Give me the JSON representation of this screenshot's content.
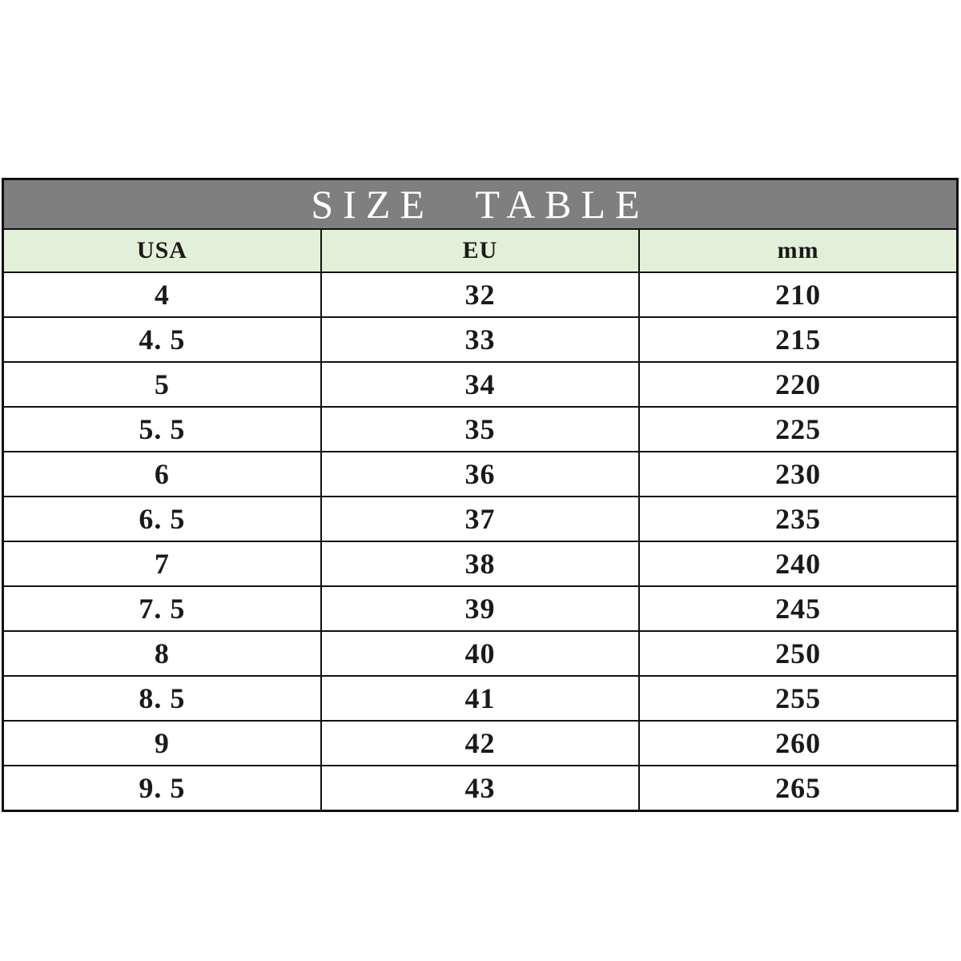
{
  "title": "SIZE TABLE",
  "table": {
    "columns": [
      "USA",
      "EU",
      "mm"
    ],
    "rows": [
      [
        "4",
        "32",
        "210"
      ],
      [
        "4. 5",
        "33",
        "215"
      ],
      [
        "5",
        "34",
        "220"
      ],
      [
        "5. 5",
        "35",
        "225"
      ],
      [
        "6",
        "36",
        "230"
      ],
      [
        "6. 5",
        "37",
        "235"
      ],
      [
        "7",
        "38",
        "240"
      ],
      [
        "7. 5",
        "39",
        "245"
      ],
      [
        "8",
        "40",
        "250"
      ],
      [
        "8. 5",
        "41",
        "255"
      ],
      [
        "9",
        "42",
        "260"
      ],
      [
        "9. 5",
        "43",
        "265"
      ]
    ]
  },
  "colors": {
    "title_bar_bg": "#7f7f7f",
    "title_text": "#ffffff",
    "header_row_bg": "#e2f0d9",
    "row_bg": "#ffffff",
    "grid_line": "#111111",
    "cell_text": "#1a1a1a",
    "page_bg": "#ffffff"
  },
  "chart_data": {
    "type": "table",
    "title": "SIZE TABLE",
    "columns": [
      "USA",
      "EU",
      "mm"
    ],
    "rows": [
      [
        4,
        32,
        210
      ],
      [
        4.5,
        33,
        215
      ],
      [
        5,
        34,
        220
      ],
      [
        5.5,
        35,
        225
      ],
      [
        6,
        36,
        230
      ],
      [
        6.5,
        37,
        235
      ],
      [
        7,
        38,
        240
      ],
      [
        7.5,
        39,
        245
      ],
      [
        8,
        40,
        250
      ],
      [
        8.5,
        41,
        255
      ],
      [
        9,
        42,
        260
      ],
      [
        9.5,
        43,
        265
      ]
    ],
    "layout": {
      "title_position": "top-merged-band",
      "grid": true,
      "column_alignment": "center"
    }
  }
}
